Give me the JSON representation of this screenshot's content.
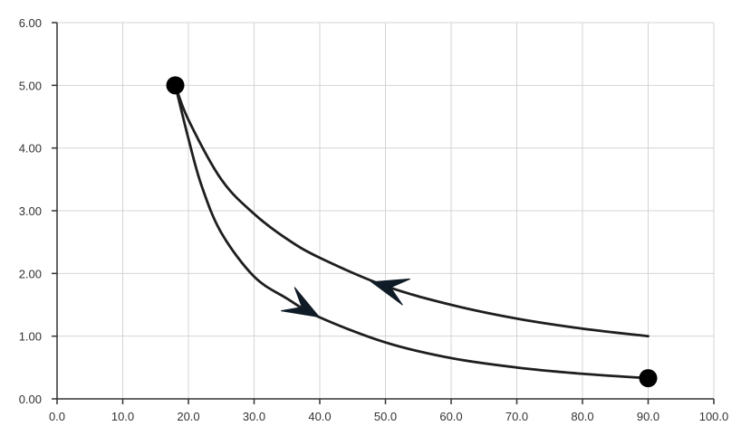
{
  "chart_data": {
    "type": "line",
    "xlim": [
      0,
      100
    ],
    "ylim": [
      0,
      6
    ],
    "x_ticks": [
      "0.0",
      "10.0",
      "20.0",
      "30.0",
      "40.0",
      "50.0",
      "60.0",
      "70.0",
      "80.0",
      "90.0",
      "100.0"
    ],
    "y_ticks": [
      "0.00",
      "1.00",
      "2.00",
      "3.00",
      "4.00",
      "5.00",
      "6.00"
    ],
    "grid": true,
    "series": [
      {
        "id": "lower",
        "x": [
          18,
          20,
          22,
          25,
          30,
          35,
          40,
          50,
          60,
          70,
          80,
          90
        ],
        "y": [
          5.0,
          4.15,
          3.4,
          2.65,
          1.95,
          1.6,
          1.3,
          0.9,
          0.65,
          0.5,
          0.4,
          0.33
        ]
      },
      {
        "id": "upper",
        "x": [
          18,
          20,
          25,
          30,
          35,
          40,
          50,
          60,
          70,
          80,
          90
        ],
        "y": [
          5.0,
          4.45,
          3.5,
          2.95,
          2.55,
          2.25,
          1.8,
          1.5,
          1.28,
          1.12,
          1.0
        ]
      }
    ],
    "points": [
      {
        "x": 18,
        "y": 5.0
      },
      {
        "x": 90,
        "y": 0.33
      }
    ],
    "arrows": [
      {
        "series": "lower",
        "x": 38,
        "direction": "forward"
      },
      {
        "series": "upper",
        "x": 50,
        "direction": "backward"
      }
    ]
  }
}
